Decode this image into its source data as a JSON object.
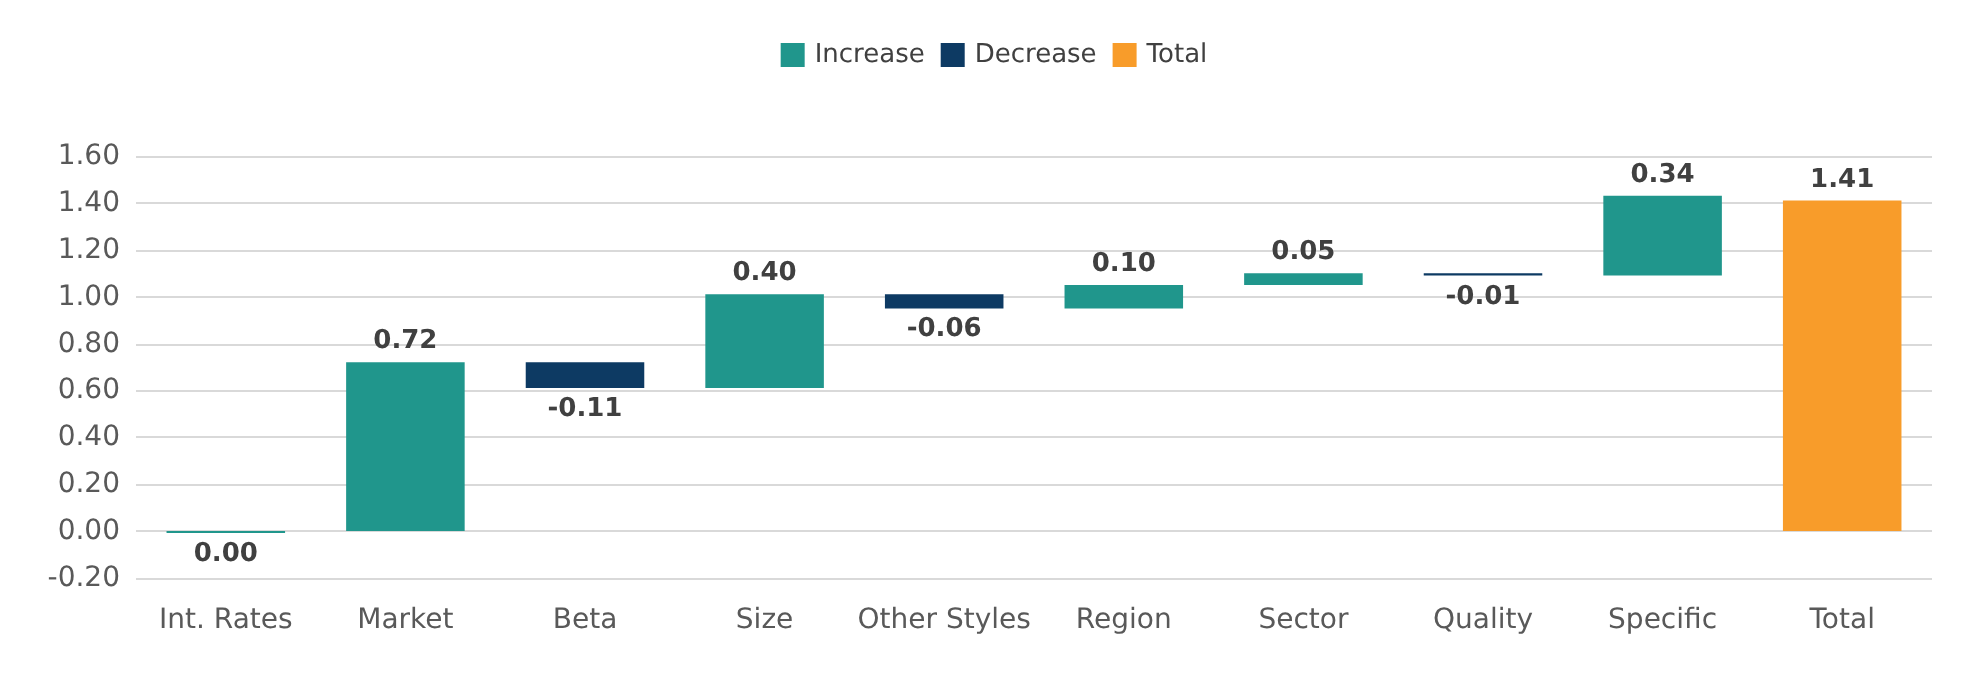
{
  "chart_data": {
    "type": "bar",
    "categories": [
      "Int. Rates",
      "Market",
      "Beta",
      "Size",
      "Other Styles",
      "Region",
      "Sector",
      "Quality",
      "Specific",
      "Total"
    ],
    "series": [
      {
        "name": "Increase",
        "color": "#20968c",
        "base": [
          0,
          0,
          null,
          0.61,
          null,
          0.95,
          1.05,
          null,
          1.09,
          null
        ],
        "values": [
          0.0,
          0.72,
          null,
          0.4,
          null,
          0.1,
          0.05,
          null,
          0.34,
          null
        ],
        "value_labels": [
          "0.00",
          "0.72",
          null,
          "0.40",
          null,
          "0.10",
          "0.05",
          null,
          "0.34",
          null
        ]
      },
      {
        "name": "Decrease",
        "color": "#0d3a63",
        "base": [
          null,
          null,
          0.72,
          null,
          1.01,
          null,
          null,
          1.1,
          null,
          null
        ],
        "values": [
          null,
          null,
          -0.11,
          null,
          -0.06,
          null,
          null,
          -0.01,
          null,
          null
        ],
        "value_labels": [
          null,
          null,
          "-0.11",
          null,
          "-0.06",
          null,
          null,
          "-0.01",
          null,
          null
        ]
      },
      {
        "name": "Total",
        "color": "#f89c2a",
        "base": [
          null,
          null,
          null,
          null,
          null,
          null,
          null,
          null,
          null,
          0
        ],
        "values": [
          null,
          null,
          null,
          null,
          null,
          null,
          null,
          null,
          null,
          1.41
        ],
        "value_labels": [
          null,
          null,
          null,
          null,
          null,
          null,
          null,
          null,
          null,
          "1.41"
        ]
      }
    ],
    "ylim": [
      -0.2,
      1.6
    ],
    "yticks": [
      {
        "value": -0.2,
        "label": "-0.20"
      },
      {
        "value": 0,
        "label": "0.00"
      },
      {
        "value": 0.2,
        "label": "0.20"
      },
      {
        "value": 0.4,
        "label": "0.40"
      },
      {
        "value": 0.6,
        "label": "0.60"
      },
      {
        "value": 0.8,
        "label": "0.80"
      },
      {
        "value": 1.0,
        "label": "1.00"
      },
      {
        "value": 1.2,
        "label": "1.20"
      },
      {
        "value": 1.4,
        "label": "1.40"
      },
      {
        "value": 1.6,
        "label": "1.60"
      }
    ],
    "grid": true,
    "legend": "top"
  }
}
